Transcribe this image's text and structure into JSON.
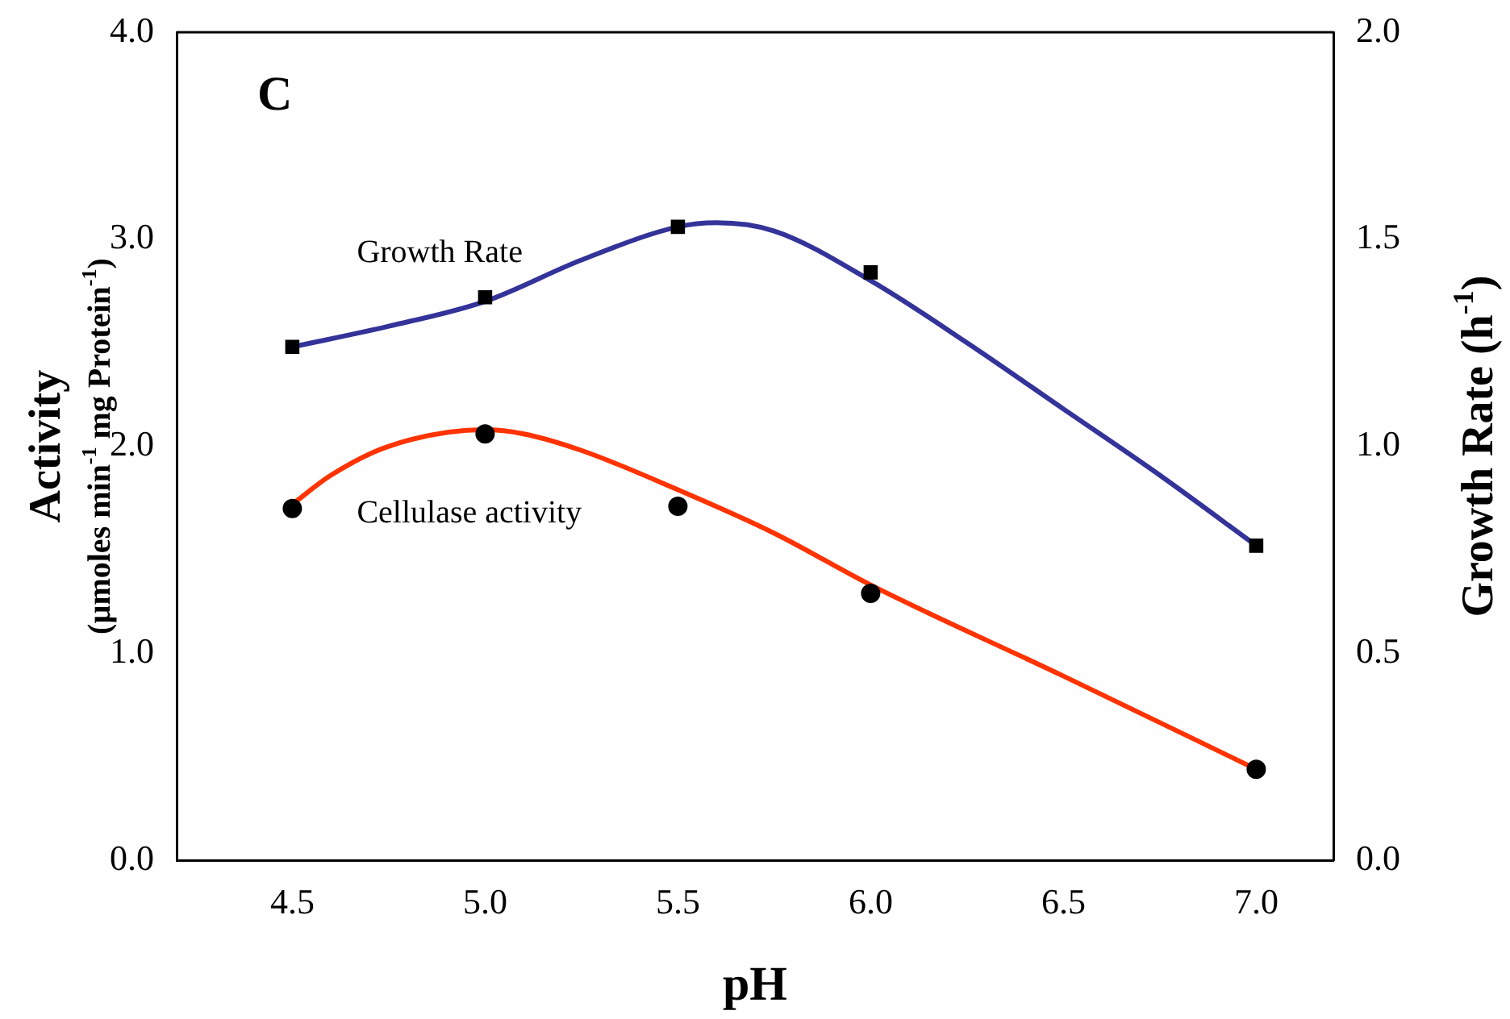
{
  "chart_data": {
    "type": "line",
    "xlabel": "pH",
    "ylabel": "Activity\n(µmoles min$^{-1}$ mg Protein$^{-1}$)",
    "y2label": "Growth Rate (h$^{-1}$)",
    "annotations": [
      "C"
    ],
    "xlim": [
      4.2,
      7.2
    ],
    "xticks": [
      {
        "value": 4.5,
        "label": "4.5"
      },
      {
        "value": 5,
        "label": "5.0"
      },
      {
        "value": 5.5,
        "label": "5.5"
      },
      {
        "value": 6,
        "label": "6.0"
      },
      {
        "value": 6.5,
        "label": "6.5"
      },
      {
        "value": 7,
        "label": "7.0"
      }
    ],
    "ylim": [
      0,
      4
    ],
    "yticks": [
      {
        "value": 0,
        "label": "0.0"
      },
      {
        "value": 1,
        "label": "1.0"
      },
      {
        "value": 2,
        "label": "2.0"
      },
      {
        "value": 3,
        "label": "3.0"
      },
      {
        "value": 4,
        "label": "4.0"
      }
    ],
    "y2lim": [
      0,
      2
    ],
    "y2ticks": [
      {
        "value": 0,
        "label": "0.0"
      },
      {
        "value": 0.5,
        "label": "0.5"
      },
      {
        "value": 1,
        "label": "1.0"
      },
      {
        "value": 1.5,
        "label": "1.5"
      },
      {
        "value": 2,
        "label": "2.0"
      }
    ],
    "grid": false,
    "legend": false,
    "series": [
      {
        "name": "Growth Rate",
        "axis": "y2",
        "color": "#333399",
        "marker": "none",
        "x": [
          4.5,
          4.75,
          5.0,
          5.25,
          5.5,
          5.6,
          5.75,
          6.0,
          6.25,
          6.5,
          6.75,
          7.0
        ],
        "values": [
          1.24,
          1.29,
          1.35,
          1.45,
          1.53,
          1.54,
          1.52,
          1.4,
          1.25,
          1.09,
          0.93,
          0.76
        ]
      },
      {
        "type": "scatter",
        "axis": "y2",
        "color": "#000000",
        "marker": "square",
        "x": [
          4.5,
          5.0,
          5.5,
          6.0,
          7.0
        ],
        "values": [
          1.24,
          1.36,
          1.53,
          1.42,
          0.76
        ]
      },
      {
        "name": "Cellulase activity",
        "axis": "y",
        "color": "#ff3300",
        "marker": "none",
        "x": [
          4.5,
          4.6,
          4.75,
          5.0,
          5.1,
          5.25,
          5.5,
          5.75,
          6.0,
          6.5,
          7.0
        ],
        "values": [
          1.72,
          1.86,
          2.0,
          2.08,
          2.06,
          1.98,
          1.79,
          1.58,
          1.33,
          0.89,
          0.44
        ]
      },
      {
        "type": "scatter",
        "axis": "y",
        "color": "#000000",
        "marker": "circle",
        "x": [
          4.5,
          5.0,
          5.5,
          6.0,
          7.0
        ],
        "values": [
          1.7,
          2.06,
          1.71,
          1.29,
          0.44
        ]
      }
    ]
  }
}
